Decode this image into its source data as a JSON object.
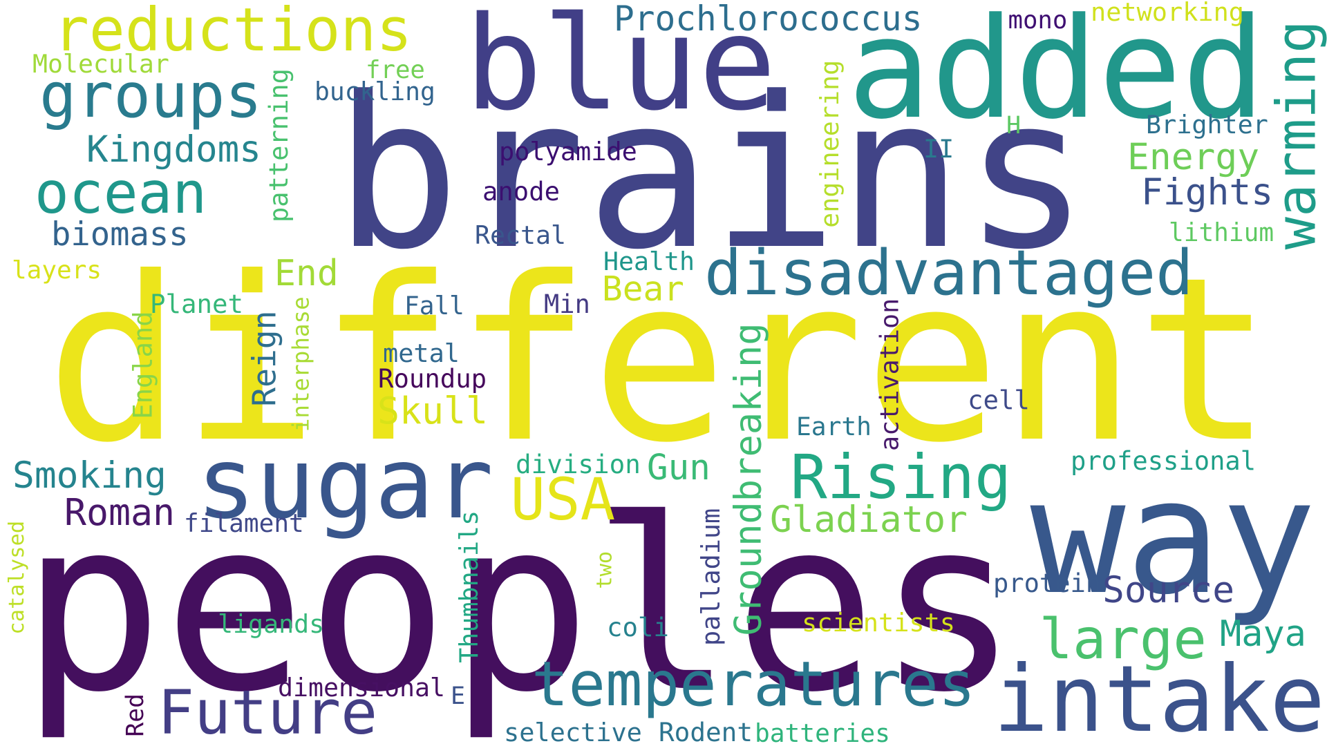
{
  "words": [
    {
      "text": "different",
      "color": "#ece51b",
      "rotated": false
    },
    {
      "text": "brains",
      "color": "#414487",
      "rotated": false
    },
    {
      "text": "peoples",
      "color": "#440f5e",
      "rotated": false
    },
    {
      "text": "blue",
      "color": "#413f87",
      "rotated": false
    },
    {
      "text": "added",
      "color": "#21978b",
      "rotated": false
    },
    {
      "text": "way",
      "color": "#38588c",
      "rotated": false
    },
    {
      "text": "sugar",
      "color": "#39568c",
      "rotated": false
    },
    {
      "text": "intake",
      "color": "#3b528b",
      "rotated": false
    },
    {
      "text": "temperatures",
      "color": "#2a788e",
      "rotated": false
    },
    {
      "text": "Future",
      "color": "#433e85",
      "rotated": false
    },
    {
      "text": "disadvantaged",
      "color": "#2c728e",
      "rotated": false
    },
    {
      "text": "reductions",
      "color": "#d5e21a",
      "rotated": false
    },
    {
      "text": "groups",
      "color": "#297b8e",
      "rotated": false
    },
    {
      "text": "ocean",
      "color": "#1f978b",
      "rotated": false
    },
    {
      "text": "Rising",
      "color": "#22a884",
      "rotated": false
    },
    {
      "text": "USA",
      "color": "#e5e419",
      "rotated": false
    },
    {
      "text": "large",
      "color": "#4ac16d",
      "rotated": false
    },
    {
      "text": "warming",
      "color": "#1e9c89",
      "rotated": true
    },
    {
      "text": "Groundbreaking",
      "color": "#3fbc73",
      "rotated": true
    },
    {
      "text": "Prochlorococcus",
      "color": "#2d6e8e",
      "rotated": false
    },
    {
      "text": "Kingdoms",
      "color": "#25858e",
      "rotated": false
    },
    {
      "text": "biomass",
      "color": "#33638d",
      "rotated": false
    },
    {
      "text": "Energy",
      "color": "#6ece58",
      "rotated": false
    },
    {
      "text": "Fights",
      "color": "#3b518b",
      "rotated": false
    },
    {
      "text": "Source",
      "color": "#404688",
      "rotated": false
    },
    {
      "text": "Maya",
      "color": "#20a386",
      "rotated": false
    },
    {
      "text": "Smoking",
      "color": "#25848e",
      "rotated": false
    },
    {
      "text": "Roman",
      "color": "#48186a",
      "rotated": false
    },
    {
      "text": "Gladiator",
      "color": "#7cd250",
      "rotated": false
    },
    {
      "text": "Skull",
      "color": "#d8e219",
      "rotated": false
    },
    {
      "text": "Reign",
      "color": "#2e6e8e",
      "rotated": true
    },
    {
      "text": "End",
      "color": "#a2da37",
      "rotated": false
    },
    {
      "text": "Bear",
      "color": "#cae11f",
      "rotated": false
    },
    {
      "text": "Gun",
      "color": "#3aba76",
      "rotated": false
    },
    {
      "text": "mono",
      "color": "#3f0f72",
      "rotated": false
    },
    {
      "text": "networking",
      "color": "#d0e11c",
      "rotated": false
    },
    {
      "text": "Molecular",
      "color": "#a0da39",
      "rotated": false
    },
    {
      "text": "free",
      "color": "#73d056",
      "rotated": false
    },
    {
      "text": "buckling",
      "color": "#32648e",
      "rotated": false
    },
    {
      "text": "patterning",
      "color": "#48c16e",
      "rotated": true
    },
    {
      "text": "engineering",
      "color": "#b5de2b",
      "rotated": true
    },
    {
      "text": "H",
      "color": "#5cc863",
      "rotated": false
    },
    {
      "text": "Brighter",
      "color": "#2d708e",
      "rotated": false
    },
    {
      "text": "II",
      "color": "#297a8e",
      "rotated": false
    },
    {
      "text": "polyamide",
      "color": "#3b0f70",
      "rotated": false
    },
    {
      "text": "anode",
      "color": "#3b0f70",
      "rotated": false
    },
    {
      "text": "Rectal",
      "color": "#39568c",
      "rotated": false
    },
    {
      "text": "lithium",
      "color": "#5ec962",
      "rotated": false
    },
    {
      "text": "layers",
      "color": "#d8e219",
      "rotated": false
    },
    {
      "text": "Health",
      "color": "#1f968b",
      "rotated": false
    },
    {
      "text": "Planet",
      "color": "#35b779",
      "rotated": false
    },
    {
      "text": "Fall",
      "color": "#33638d",
      "rotated": false
    },
    {
      "text": "Min",
      "color": "#443a83",
      "rotated": false
    },
    {
      "text": "England",
      "color": "#89d548",
      "rotated": true
    },
    {
      "text": "interphase",
      "color": "#a8db34",
      "rotated": true
    },
    {
      "text": "metal",
      "color": "#31688e",
      "rotated": false
    },
    {
      "text": "Roundup",
      "color": "#46085c",
      "rotated": false
    },
    {
      "text": "activation",
      "color": "#481a6c",
      "rotated": true
    },
    {
      "text": "cell",
      "color": "#3e4a89",
      "rotated": false
    },
    {
      "text": "Earth",
      "color": "#2a778e",
      "rotated": false
    },
    {
      "text": "division",
      "color": "#26ad81",
      "rotated": false
    },
    {
      "text": "professional",
      "color": "#1fa088",
      "rotated": false
    },
    {
      "text": "catalysed",
      "color": "#bddf26",
      "rotated": true
    },
    {
      "text": "filament",
      "color": "#3f4889",
      "rotated": false
    },
    {
      "text": "Thumbnails",
      "color": "#22a884",
      "rotated": true
    },
    {
      "text": "two",
      "color": "#b2dd2d",
      "rotated": true
    },
    {
      "text": "palladium",
      "color": "#404588",
      "rotated": true
    },
    {
      "text": "protein",
      "color": "#38598c",
      "rotated": false
    },
    {
      "text": "ligands",
      "color": "#35b779",
      "rotated": false
    },
    {
      "text": "coli",
      "color": "#26828e",
      "rotated": false
    },
    {
      "text": "scientists",
      "color": "#d5e21a",
      "rotated": false
    },
    {
      "text": "dimensional",
      "color": "#471063",
      "rotated": false
    },
    {
      "text": "E",
      "color": "#3b528b",
      "rotated": false
    },
    {
      "text": "Red",
      "color": "#440154",
      "rotated": true
    },
    {
      "text": "selective",
      "color": "#2c718e",
      "rotated": false
    },
    {
      "text": "Rodent",
      "color": "#2c738e",
      "rotated": false
    },
    {
      "text": "batteries",
      "color": "#2fb47c",
      "rotated": false
    }
  ]
}
